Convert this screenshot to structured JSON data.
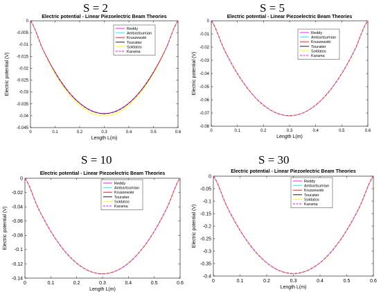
{
  "colors": {
    "series": [
      "#ff00ff",
      "#00ffff",
      "#ff0000",
      "#000000",
      "#ffff00",
      "#ff00ff"
    ],
    "axis": "#000000",
    "background": "#ffffff"
  },
  "chart_data": [
    {
      "type": "line",
      "panel_label": "S = 2",
      "title": "Electric potential - Linear Piezoelectric Beam Theories",
      "xlabel": "Length L(m)",
      "ylabel": "Electric potential (V)",
      "xlim": [
        0,
        0.6
      ],
      "ylim": [
        -0.045,
        0
      ],
      "xticks": [
        "0",
        "0.1",
        "0.2",
        "0.3",
        "0.4",
        "0.5",
        "0.6"
      ],
      "yticks": [
        "0",
        "-0.005",
        "-0.01",
        "-0.015",
        "-0.02",
        "-0.025",
        "-0.03",
        "-0.035",
        "-0.04",
        "-0.045"
      ],
      "x": [
        0,
        0.05,
        0.1,
        0.15,
        0.2,
        0.25,
        0.3,
        0.35,
        0.4,
        0.45,
        0.5,
        0.55,
        0.6
      ],
      "series": [
        {
          "name": "Reddy",
          "values": [
            0,
            -0.012,
            -0.0217,
            -0.0293,
            -0.0347,
            -0.038,
            -0.0391,
            -0.038,
            -0.0347,
            -0.0293,
            -0.0217,
            -0.012,
            0
          ]
        },
        {
          "name": "Ambartsumian",
          "values": [
            0,
            -0.012,
            -0.0217,
            -0.0293,
            -0.0347,
            -0.038,
            -0.0391,
            -0.038,
            -0.0347,
            -0.0293,
            -0.0217,
            -0.012,
            0
          ]
        },
        {
          "name": "Kruszewski",
          "values": [
            0,
            -0.012,
            -0.0217,
            -0.0293,
            -0.0347,
            -0.038,
            -0.0391,
            -0.038,
            -0.0347,
            -0.0293,
            -0.0217,
            -0.012,
            0
          ]
        },
        {
          "name": "Touratier",
          "values": [
            0,
            -0.012,
            -0.0217,
            -0.0293,
            -0.0347,
            -0.038,
            -0.0391,
            -0.038,
            -0.0347,
            -0.0293,
            -0.0217,
            -0.012,
            0
          ]
        },
        {
          "name": "Soldatos",
          "values": [
            0,
            -0.0122,
            -0.0222,
            -0.03,
            -0.0356,
            -0.039,
            -0.04,
            -0.039,
            -0.0356,
            -0.03,
            -0.0222,
            -0.0122,
            0
          ]
        },
        {
          "name": "Karama",
          "values": [
            0,
            -0.012,
            -0.0217,
            -0.0293,
            -0.0347,
            -0.038,
            -0.0391,
            -0.038,
            -0.0347,
            -0.0293,
            -0.0217,
            -0.012,
            0
          ]
        }
      ]
    },
    {
      "type": "line",
      "panel_label": "S = 5",
      "title": "Electric potential - Linear Piezoelectric Beam Theories",
      "xlabel": "Length L(m)",
      "ylabel": "Electric potential (V)",
      "xlim": [
        0,
        0.6
      ],
      "ylim": [
        -0.08,
        0
      ],
      "xticks": [
        "0",
        "0.1",
        "0.2",
        "0.3",
        "0.4",
        "0.5",
        "0.6"
      ],
      "yticks": [
        "0",
        "-0.01",
        "-0.02",
        "-0.03",
        "-0.04",
        "-0.05",
        "-0.06",
        "-0.07",
        "-0.08"
      ],
      "x": [
        0,
        0.05,
        0.1,
        0.15,
        0.2,
        0.25,
        0.3,
        0.35,
        0.4,
        0.45,
        0.5,
        0.55,
        0.6
      ],
      "series": [
        {
          "name": "Reddy",
          "values": [
            0,
            -0.022,
            -0.04,
            -0.054,
            -0.064,
            -0.07,
            -0.072,
            -0.07,
            -0.064,
            -0.054,
            -0.04,
            -0.022,
            0
          ]
        },
        {
          "name": "Ambartsumian",
          "values": [
            0,
            -0.022,
            -0.04,
            -0.054,
            -0.064,
            -0.07,
            -0.072,
            -0.07,
            -0.064,
            -0.054,
            -0.04,
            -0.022,
            0
          ]
        },
        {
          "name": "Kruszewski",
          "values": [
            0,
            -0.022,
            -0.04,
            -0.054,
            -0.064,
            -0.07,
            -0.072,
            -0.07,
            -0.064,
            -0.054,
            -0.04,
            -0.022,
            0
          ]
        },
        {
          "name": "Touratier",
          "values": [
            0,
            -0.022,
            -0.04,
            -0.054,
            -0.064,
            -0.07,
            -0.072,
            -0.07,
            -0.064,
            -0.054,
            -0.04,
            -0.022,
            0
          ]
        },
        {
          "name": "Soldatos",
          "values": [
            0,
            -0.022,
            -0.04,
            -0.054,
            -0.064,
            -0.07,
            -0.072,
            -0.07,
            -0.064,
            -0.054,
            -0.04,
            -0.022,
            0
          ]
        },
        {
          "name": "Karama",
          "values": [
            0,
            -0.022,
            -0.04,
            -0.054,
            -0.064,
            -0.07,
            -0.072,
            -0.07,
            -0.064,
            -0.054,
            -0.04,
            -0.022,
            0
          ]
        }
      ]
    },
    {
      "type": "line",
      "panel_label": "S = 10",
      "title": "Electric potential - Linear Piezoelectric Beam Theories",
      "xlabel": "Length L(m)",
      "ylabel": "Electric potential (V)",
      "xlim": [
        0,
        0.6
      ],
      "ylim": [
        -0.14,
        0
      ],
      "xticks": [
        "0",
        "0.1",
        "0.2",
        "0.3",
        "0.4",
        "0.5",
        "0.6"
      ],
      "yticks": [
        "0",
        "-0.02",
        "-0.04",
        "-0.06",
        "-0.08",
        "-0.1",
        "-0.12",
        "-0.14"
      ],
      "x": [
        0,
        0.05,
        0.1,
        0.15,
        0.2,
        0.25,
        0.3,
        0.35,
        0.4,
        0.45,
        0.5,
        0.55,
        0.6
      ],
      "series": [
        {
          "name": "Reddy",
          "values": [
            0,
            -0.0409,
            -0.0744,
            -0.1004,
            -0.119,
            -0.1302,
            -0.1339,
            -0.1302,
            -0.119,
            -0.1004,
            -0.0744,
            -0.0409,
            0
          ]
        },
        {
          "name": "Ambartsumian",
          "values": [
            0,
            -0.0409,
            -0.0744,
            -0.1004,
            -0.119,
            -0.1302,
            -0.1339,
            -0.1302,
            -0.119,
            -0.1004,
            -0.0744,
            -0.0409,
            0
          ]
        },
        {
          "name": "Kruszewski",
          "values": [
            0,
            -0.0409,
            -0.0744,
            -0.1004,
            -0.119,
            -0.1302,
            -0.1339,
            -0.1302,
            -0.119,
            -0.1004,
            -0.0744,
            -0.0409,
            0
          ]
        },
        {
          "name": "Touratier",
          "values": [
            0,
            -0.0409,
            -0.0744,
            -0.1004,
            -0.119,
            -0.1302,
            -0.1339,
            -0.1302,
            -0.119,
            -0.1004,
            -0.0744,
            -0.0409,
            0
          ]
        },
        {
          "name": "Soldatos",
          "values": [
            0,
            -0.0409,
            -0.0744,
            -0.1004,
            -0.119,
            -0.1302,
            -0.1339,
            -0.1302,
            -0.119,
            -0.1004,
            -0.0744,
            -0.0409,
            0
          ]
        },
        {
          "name": "Karama",
          "values": [
            0,
            -0.0409,
            -0.0744,
            -0.1004,
            -0.119,
            -0.1302,
            -0.1339,
            -0.1302,
            -0.119,
            -0.1004,
            -0.0744,
            -0.0409,
            0
          ]
        }
      ]
    },
    {
      "type": "line",
      "panel_label": "S = 30",
      "title": "Electric potential - Linear Piezoelectric Beam Theories",
      "xlabel": "Length L(m)",
      "ylabel": "Electric potential (V)",
      "xlim": [
        0,
        0.6
      ],
      "ylim": [
        -0.4,
        0
      ],
      "xticks": [
        "0",
        "0.1",
        "0.2",
        "0.3",
        "0.4",
        "0.5",
        "0.6"
      ],
      "yticks": [
        "0",
        "-0.05",
        "-0.1",
        "-0.15",
        "-0.2",
        "-0.25",
        "-0.3",
        "-0.35",
        "-0.4"
      ],
      "x": [
        0,
        0.05,
        0.1,
        0.15,
        0.2,
        0.25,
        0.3,
        0.35,
        0.4,
        0.45,
        0.5,
        0.55,
        0.6
      ],
      "series": [
        {
          "name": "Reddy",
          "values": [
            0,
            -0.1192,
            -0.2167,
            -0.2925,
            -0.3467,
            -0.3792,
            -0.39,
            -0.3792,
            -0.3467,
            -0.2925,
            -0.2167,
            -0.1192,
            0
          ]
        },
        {
          "name": "Ambartsumian",
          "values": [
            0,
            -0.1192,
            -0.2167,
            -0.2925,
            -0.3467,
            -0.3792,
            -0.39,
            -0.3792,
            -0.3467,
            -0.2925,
            -0.2167,
            -0.1192,
            0
          ]
        },
        {
          "name": "Kruszewski",
          "values": [
            0,
            -0.1192,
            -0.2167,
            -0.2925,
            -0.3467,
            -0.3792,
            -0.39,
            -0.3792,
            -0.3467,
            -0.2925,
            -0.2167,
            -0.1192,
            0
          ]
        },
        {
          "name": "Touratier",
          "values": [
            0,
            -0.1192,
            -0.2167,
            -0.2925,
            -0.3467,
            -0.3792,
            -0.39,
            -0.3792,
            -0.3467,
            -0.2925,
            -0.2167,
            -0.1192,
            0
          ]
        },
        {
          "name": "Soldatos",
          "values": [
            0,
            -0.1192,
            -0.2167,
            -0.2925,
            -0.3467,
            -0.3792,
            -0.39,
            -0.3792,
            -0.3467,
            -0.2925,
            -0.2167,
            -0.1192,
            0
          ]
        },
        {
          "name": "Karama",
          "values": [
            0,
            -0.1192,
            -0.2167,
            -0.2925,
            -0.3467,
            -0.3792,
            -0.39,
            -0.3792,
            -0.3467,
            -0.2925,
            -0.2167,
            -0.1192,
            0
          ]
        }
      ]
    }
  ]
}
